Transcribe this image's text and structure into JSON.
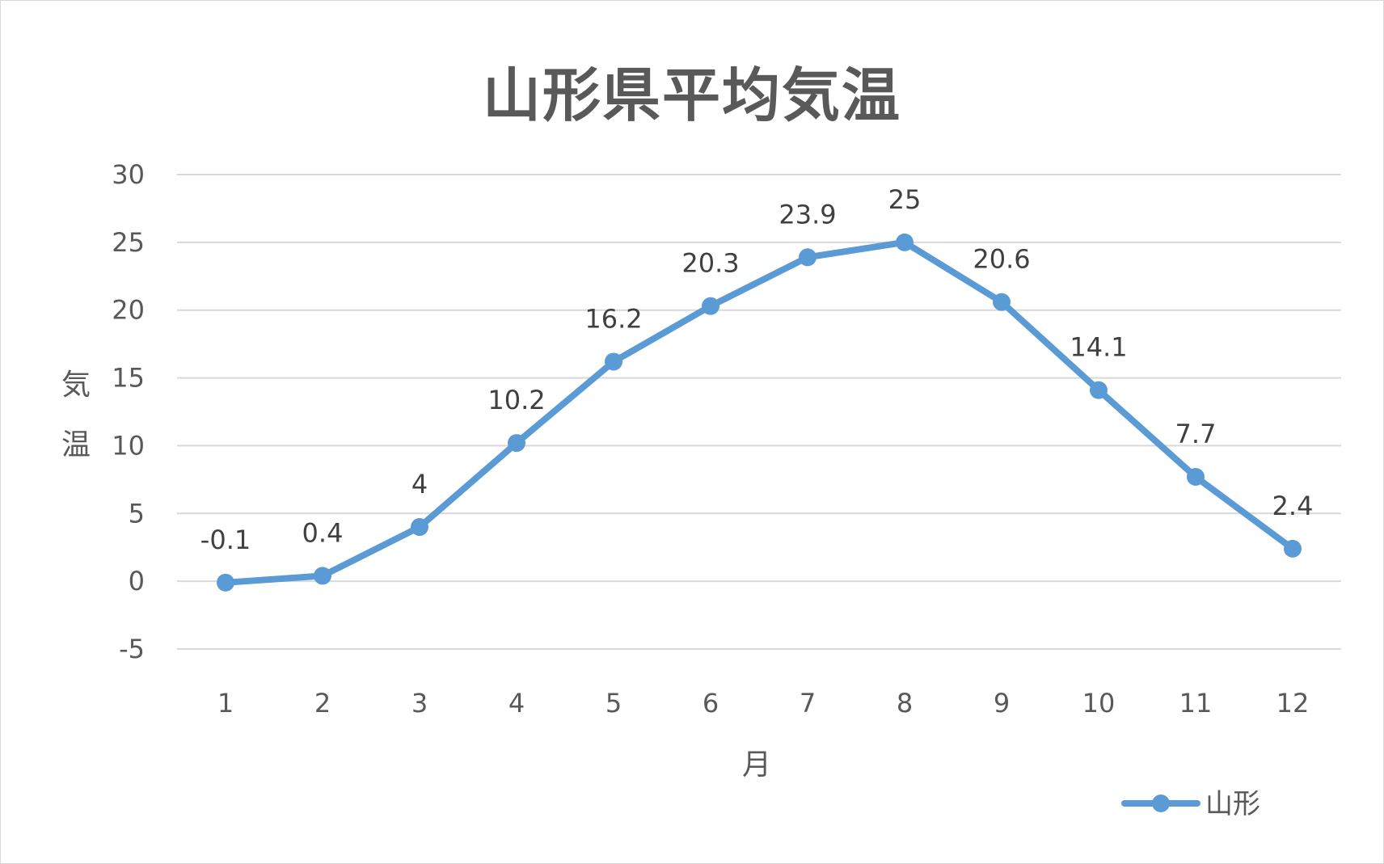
{
  "chart_data": {
    "type": "line",
    "title": "山形県平均気温",
    "xlabel": "月",
    "ylabel": "気温",
    "categories": [
      "1",
      "2",
      "3",
      "4",
      "5",
      "6",
      "7",
      "8",
      "9",
      "10",
      "11",
      "12"
    ],
    "series": [
      {
        "name": "山形",
        "values": [
          -0.1,
          0.4,
          4,
          10.2,
          16.2,
          20.3,
          23.9,
          25,
          20.6,
          14.1,
          7.7,
          2.4
        ],
        "color": "#5b9bd5"
      }
    ],
    "data_labels": [
      "-0.1",
      "0.4",
      "4",
      "10.2",
      "16.2",
      "20.3",
      "23.9",
      "25",
      "20.6",
      "14.1",
      "7.7",
      "2.4"
    ],
    "ylim": [
      -5,
      30
    ],
    "yticks": [
      "-5",
      "0",
      "5",
      "10",
      "15",
      "20",
      "25",
      "30"
    ],
    "grid": true,
    "legend": "bottom-right"
  }
}
